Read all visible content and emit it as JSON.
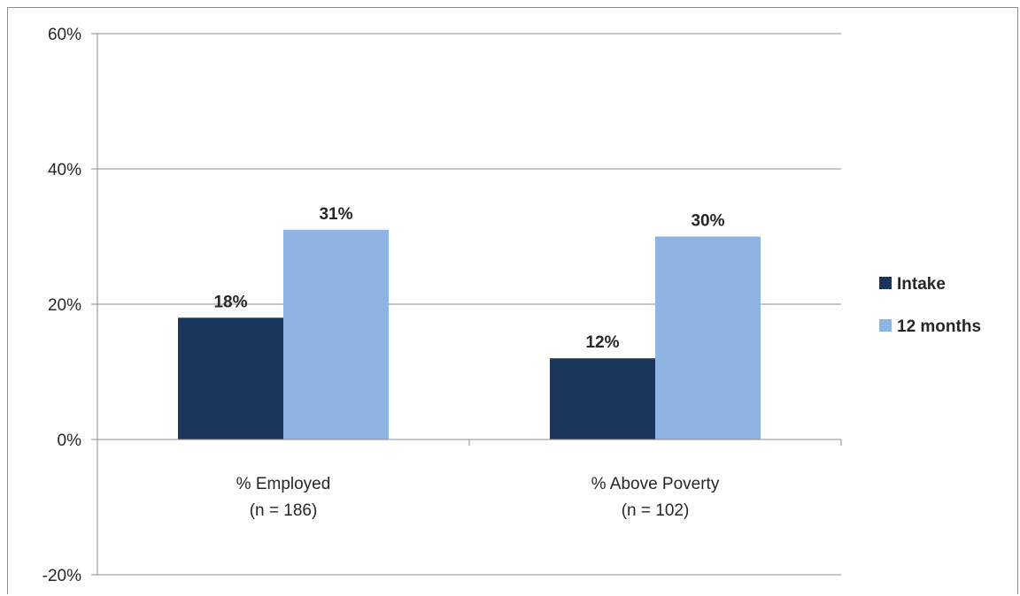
{
  "chart_data": {
    "type": "bar",
    "categories": [
      {
        "line1": "% Employed",
        "line2": "(n = 186)"
      },
      {
        "line1": "% Above Poverty",
        "line2": "(n = 102)"
      }
    ],
    "series": [
      {
        "name": "Intake",
        "color": "#1b365d",
        "values": [
          18,
          12
        ],
        "labels": [
          "18%",
          "12%"
        ]
      },
      {
        "name": "12 months",
        "color": "#8eb4e3",
        "values": [
          31,
          30
        ],
        "labels": [
          "31%",
          "30%"
        ]
      }
    ],
    "ylim": [
      -20,
      60
    ],
    "yticks": [
      -20,
      0,
      20,
      40,
      60
    ],
    "ytick_labels": [
      "-20%",
      "0%",
      "20%",
      "40%",
      "60%"
    ],
    "grid": true,
    "legend": "right"
  }
}
